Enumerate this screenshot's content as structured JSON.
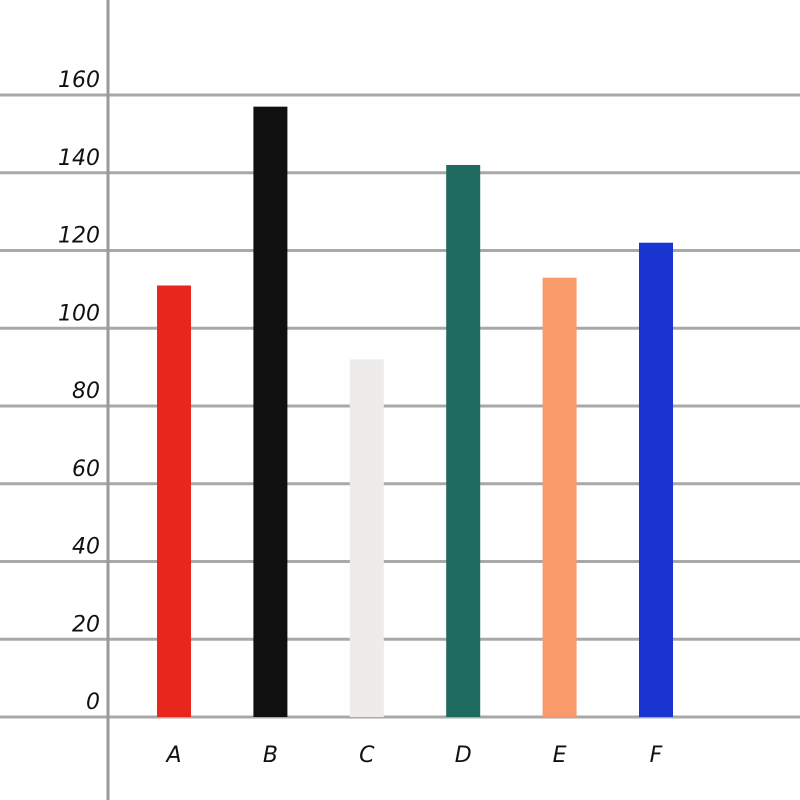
{
  "chart_data": {
    "type": "bar",
    "title": "",
    "xlabel": "",
    "ylabel": "",
    "categories": [
      "A",
      "B",
      "C",
      "D",
      "E",
      "F"
    ],
    "values": [
      111,
      157,
      92,
      142,
      113,
      122
    ],
    "colors": [
      "#e8261e",
      "#101010",
      "#eeebeb",
      "#1e6a5e",
      "#f99a6a",
      "#1a34d2"
    ],
    "ylim": [
      0,
      160
    ],
    "yticks": [
      "0",
      "20",
      "40",
      "60",
      "80",
      "100",
      "120",
      "140",
      "160"
    ],
    "grid": true,
    "grid_color": "#a8a8a8",
    "axis_color": "#9a9a9a"
  }
}
